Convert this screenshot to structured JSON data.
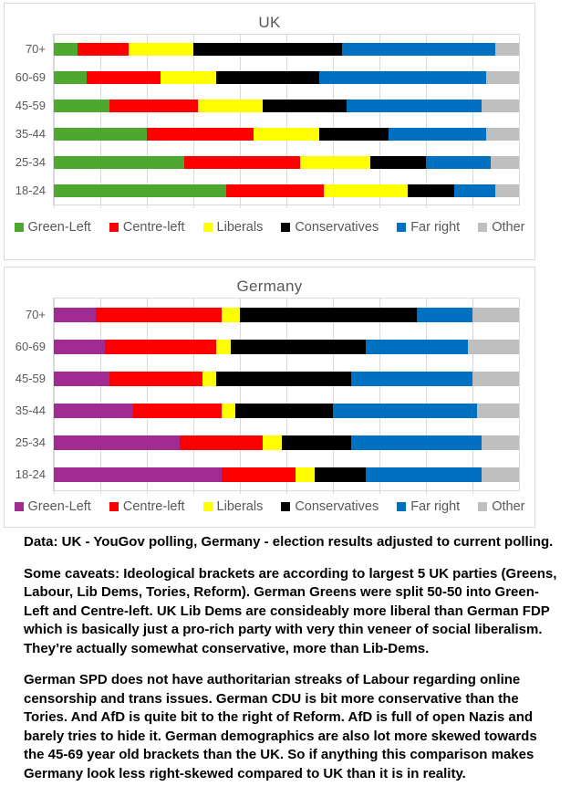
{
  "chart_data": [
    {
      "type": "bar",
      "orientation": "horizontal",
      "stacked": true,
      "unit": "percent of age group",
      "title": "UK",
      "categories": [
        "70+",
        "60-69",
        "45-59",
        "35-44",
        "25-34",
        "18-24"
      ],
      "series": [
        {
          "name": "Green-Left",
          "color": "#4EA72E",
          "values": [
            5,
            7,
            12,
            20,
            28,
            37
          ]
        },
        {
          "name": "Centre-left",
          "color": "#FF0000",
          "values": [
            11,
            16,
            19,
            23,
            25,
            21
          ]
        },
        {
          "name": "Liberals",
          "color": "#FFFF00",
          "values": [
            14,
            12,
            14,
            14,
            15,
            18
          ]
        },
        {
          "name": "Conservatives",
          "color": "#000000",
          "values": [
            32,
            22,
            18,
            15,
            12,
            10
          ]
        },
        {
          "name": "Far right",
          "color": "#0070C0",
          "values": [
            33,
            36,
            29,
            21,
            14,
            9
          ]
        },
        {
          "name": "Other",
          "color": "#BFBFBF",
          "values": [
            5,
            7,
            8,
            7,
            6,
            5
          ]
        }
      ],
      "xlim": [
        0,
        100
      ],
      "gridlines": "vertical every 10%",
      "legend_position": "bottom"
    },
    {
      "type": "bar",
      "orientation": "horizontal",
      "stacked": true,
      "unit": "percent of age group",
      "title": "Germany",
      "categories": [
        "70+",
        "60-69",
        "45-59",
        "35-44",
        "25-34",
        "18-24"
      ],
      "series": [
        {
          "name": "Green-Left",
          "color": "#A02B93",
          "values": [
            9,
            11,
            12,
            17,
            27,
            36
          ]
        },
        {
          "name": "Centre-left",
          "color": "#FF0000",
          "values": [
            27,
            24,
            20,
            19,
            18,
            16
          ]
        },
        {
          "name": "Liberals",
          "color": "#FFFF00",
          "values": [
            4,
            3,
            3,
            3,
            4,
            4
          ]
        },
        {
          "name": "Conservatives",
          "color": "#000000",
          "values": [
            38,
            29,
            29,
            21,
            15,
            11
          ]
        },
        {
          "name": "Far right",
          "color": "#0070C0",
          "values": [
            12,
            22,
            26,
            31,
            28,
            25
          ]
        },
        {
          "name": "Other",
          "color": "#BFBFBF",
          "values": [
            10,
            11,
            10,
            9,
            8,
            8
          ]
        }
      ],
      "xlim": [
        0,
        100
      ],
      "gridlines": "vertical every 10%",
      "legend_position": "bottom"
    }
  ],
  "notes": {
    "para1": "Data: UK - YouGov polling, Germany - election results adjusted to current polling.",
    "para2": "Some caveats: Ideological brackets are according to largest 5 UK parties (Greens, Labour, Lib Dems, Tories, Reform). German Greens were split 50-50 into Green-Left and Centre-left. UK Lib Dems are consideably more liberal than German FDP which is basically just a pro-rich party with very thin veneer of social liberalism. They’re actually somewhat conservative, more than Lib-Dems.",
    "para3": "German SPD does not have authoritarian streaks of Labour regarding online censorship and trans issues. German CDU is bit more conservative than the Tories. And AfD is quite bit to the right of Reform. AfD is full of open Nazis and barely tries to hide it. German demographics are also lot more skewed towards the 45-69 year old brackets than the UK. So if anything this comparison makes Germany look less right-skewed compared to UK than it is in reality."
  }
}
